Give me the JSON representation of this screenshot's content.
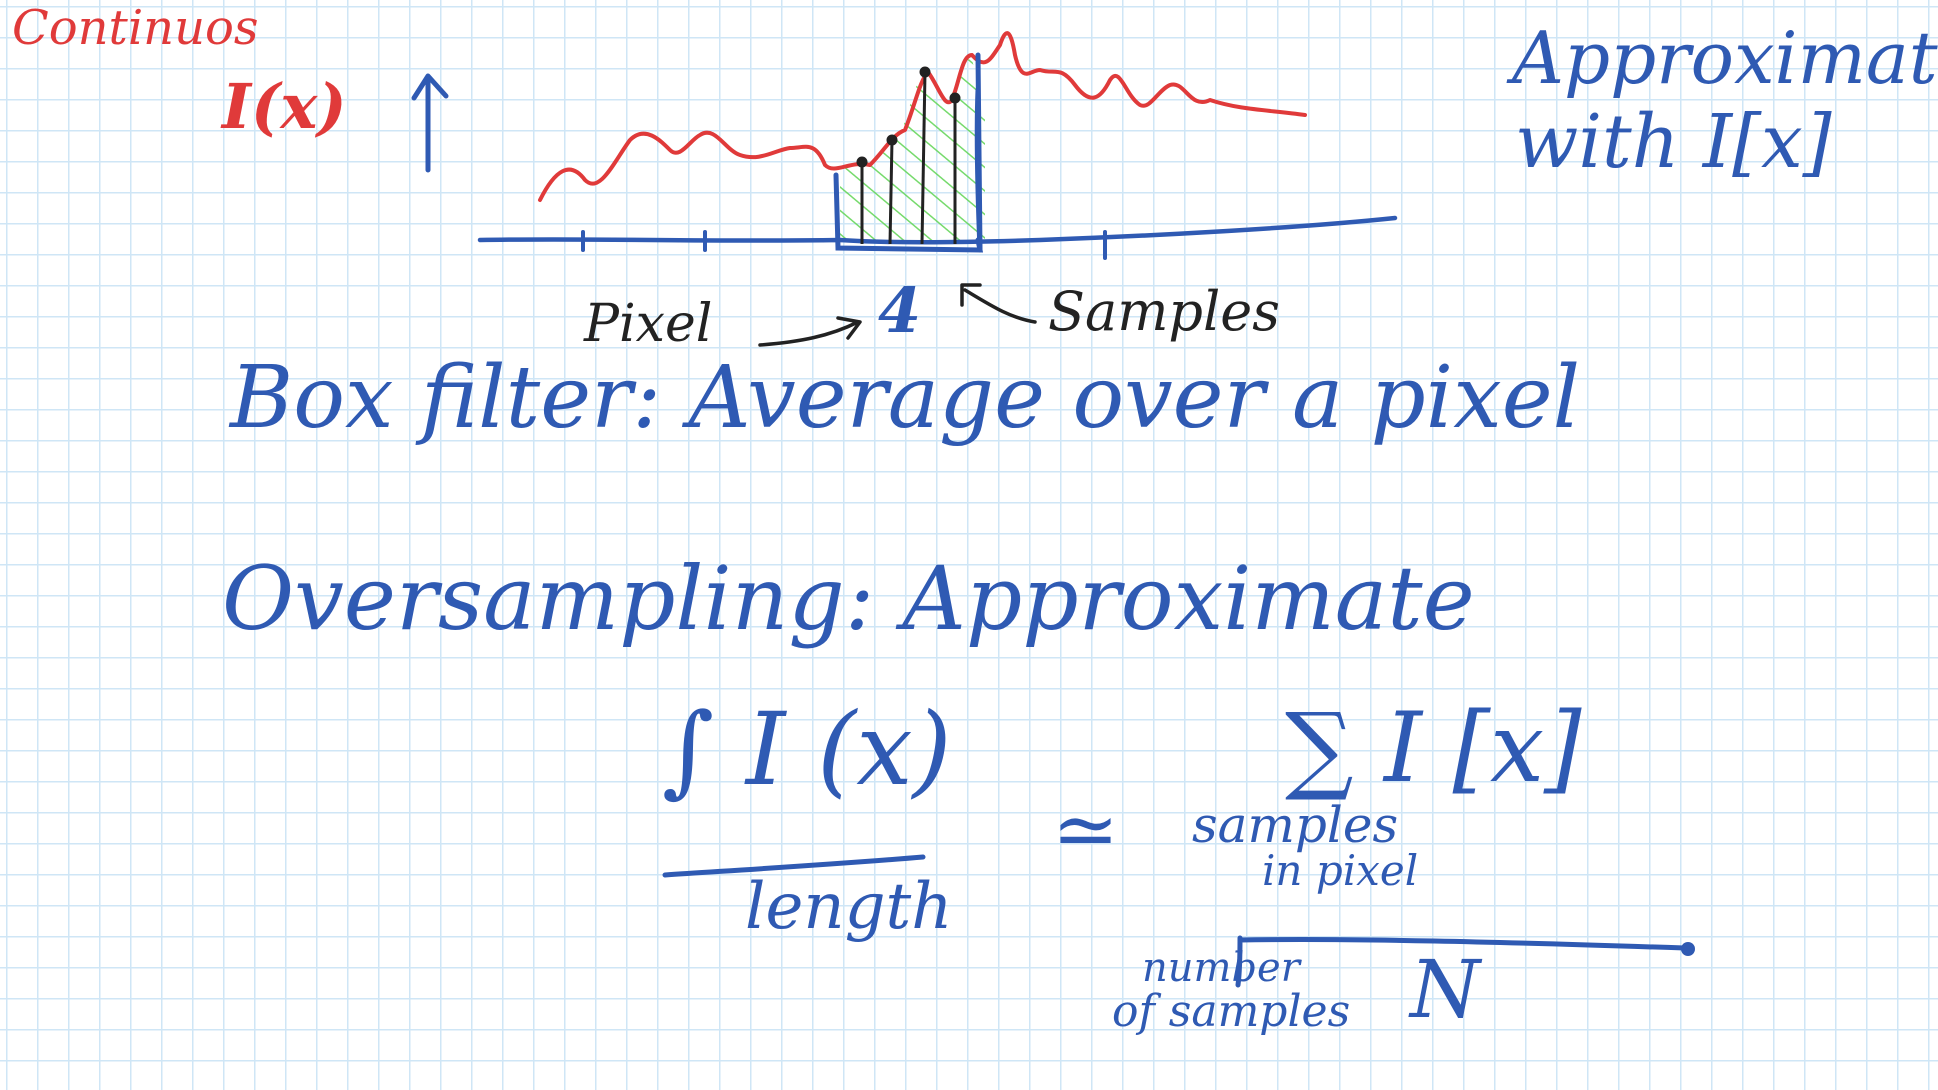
{
  "labels": {
    "continuous": "Continuos",
    "i_continuous": "I(x)",
    "approximate_with": "Approximate",
    "with_ix": "with I[x]",
    "pixel": "Pixel",
    "four": "4",
    "samples": "Samples"
  },
  "notes": {
    "box_filter": "Box filter: Average over a pixel",
    "oversampling": "Oversampling: Approximate"
  },
  "formula": {
    "integral_numerator": "∫ I (x)",
    "integral_denominator": "length",
    "approx_sign": "≃",
    "sum_numerator": "∑ I [x]",
    "sum_subscript": "samples",
    "sum_subscript_2": "in pixel",
    "number_of_samples": "number",
    "number_of_samples_2": "of samples",
    "sum_denominator": "N"
  },
  "colors": {
    "red_ink": "#e03a3a",
    "blue_ink": "#2f5ab3",
    "green_hatch": "#67d65c",
    "grid": "#cfe6f6"
  }
}
